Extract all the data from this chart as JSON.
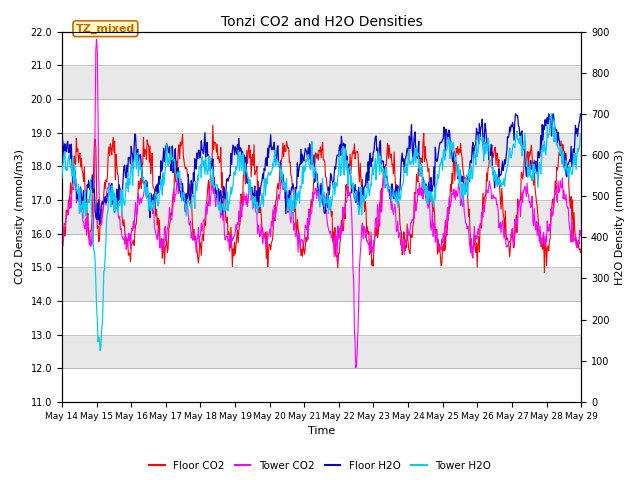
{
  "title": "Tonzi CO2 and H2O Densities",
  "xlabel": "Time",
  "ylabel_left": "CO2 Density (mmol/m3)",
  "ylabel_right": "H2O Density (mmol/m3)",
  "ylim_left": [
    11.0,
    22.0
  ],
  "ylim_right": [
    0,
    900
  ],
  "yticks_left": [
    11.0,
    12.0,
    13.0,
    14.0,
    15.0,
    16.0,
    17.0,
    18.0,
    19.0,
    20.0,
    21.0,
    22.0
  ],
  "yticks_right": [
    0,
    100,
    200,
    300,
    400,
    500,
    600,
    700,
    800,
    900
  ],
  "xtick_labels": [
    "May 14",
    "May 15",
    "May 16",
    "May 17",
    "May 18",
    "May 19",
    "May 20",
    "May 21",
    "May 22",
    "May 23",
    "May 24",
    "May 25",
    "May 26",
    "May 27",
    "May 28",
    "May 29"
  ],
  "annotation_text": "TZ_mixed",
  "colors": {
    "floor_co2": "#FF0000",
    "tower_co2": "#FF00FF",
    "floor_h2o": "#0000CD",
    "tower_h2o": "#00CCFF"
  },
  "legend_labels": [
    "Floor CO2",
    "Tower CO2",
    "Floor H2O",
    "Tower H2O"
  ],
  "band_colors": [
    "#FFFFFF",
    "#E8E8E8"
  ]
}
